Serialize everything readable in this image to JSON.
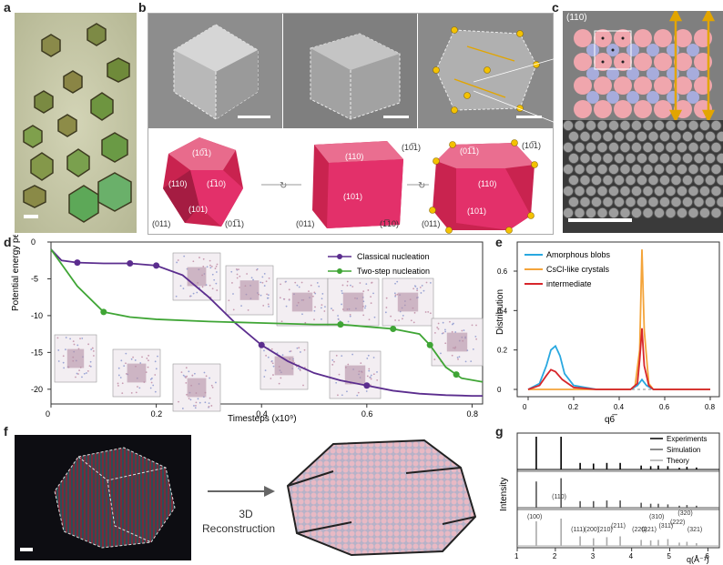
{
  "panel_letters": {
    "a": "a",
    "b": "b",
    "c": "c",
    "d": "d",
    "e": "e",
    "f": "f",
    "g": "g"
  },
  "panel_b": {
    "facets_1": [
      "(10̅1)",
      "(1̅10)",
      "(110)",
      "(101)",
      "(011)",
      "(01̅1)"
    ],
    "facets_2": [
      "(110)",
      "(10̅1)",
      "(101)",
      "(011)",
      "(1̅10)"
    ],
    "facets_3": [
      "(01̅1)",
      "(10̅1)",
      "(110)",
      "(101)",
      "(011)"
    ]
  },
  "panel_c": {
    "facet_label": "(110)"
  },
  "panel_d": {
    "ylabel": "Potential energy per particle (kʙT)",
    "xlabel": "Timesteps (x10⁹)",
    "legend": [
      "Classical nucleation",
      "Two-step nucleation"
    ],
    "colors": {
      "classical": "#5b2d8e",
      "two_step": "#3fa535"
    }
  },
  "panel_e": {
    "ylabel": "Distribution",
    "xlabel": "q6̅",
    "legend": [
      "Amorphous blobs",
      "CsCl-like crystals",
      "intermediate"
    ],
    "colors": {
      "amorphous": "#29a8e0",
      "cscl": "#f4a43a",
      "intermediate": "#d7262b"
    }
  },
  "panel_f": {
    "arrow_label_1": "3D",
    "arrow_label_2": "Reconstruction"
  },
  "panel_g": {
    "ylabel": "Intensity",
    "xlabel": "q(Å⁻¹)",
    "legend": [
      "Experiments",
      "Simulation",
      "Theory"
    ],
    "hkl": [
      "(100)",
      "(110)",
      "(111)",
      "(200)",
      "(210)",
      "(211)",
      "(220)",
      "(221)",
      "(310)",
      "(311)",
      "(222)",
      "(320)",
      "(321)"
    ]
  },
  "chart_data": [
    {
      "type": "line",
      "id": "d",
      "xlabel": "Timesteps (x10⁹)",
      "ylabel": "Potential energy per particle (kʙT)",
      "xlim": [
        0,
        0.82
      ],
      "ylim": [
        -22,
        0
      ],
      "xticks": [
        0,
        0.2,
        0.4,
        0.6,
        0.8
      ],
      "yticks": [
        -20,
        -15,
        -10,
        -5,
        0
      ],
      "series": [
        {
          "name": "Classical nucleation",
          "x": [
            0,
            0.02,
            0.05,
            0.1,
            0.15,
            0.2,
            0.25,
            0.3,
            0.35,
            0.4,
            0.45,
            0.5,
            0.55,
            0.6,
            0.65,
            0.7,
            0.75,
            0.8,
            0.82
          ],
          "y": [
            -1,
            -2.5,
            -2.8,
            -2.9,
            -2.9,
            -3.2,
            -4.5,
            -7.5,
            -11,
            -14,
            -16.2,
            -17.8,
            -18.8,
            -19.5,
            -20.2,
            -20.6,
            -20.8,
            -20.9,
            -20.9
          ],
          "markers_x": [
            0.05,
            0.15,
            0.2,
            0.4,
            0.6
          ]
        },
        {
          "name": "Two-step nucleation",
          "x": [
            0,
            0.02,
            0.05,
            0.1,
            0.15,
            0.2,
            0.3,
            0.4,
            0.5,
            0.55,
            0.6,
            0.65,
            0.7,
            0.72,
            0.75,
            0.78,
            0.82
          ],
          "y": [
            -1,
            -3,
            -6,
            -9.5,
            -10.2,
            -10.5,
            -10.8,
            -11,
            -11.2,
            -11.2,
            -11.5,
            -11.8,
            -12.5,
            -14,
            -17,
            -18.5,
            -19
          ],
          "markers_x": [
            0.1,
            0.55,
            0.65,
            0.72,
            0.77
          ]
        }
      ]
    },
    {
      "type": "line",
      "id": "e",
      "xlabel": "q6̅",
      "ylabel": "Distribution",
      "xlim": [
        0,
        0.8
      ],
      "ylim": [
        0,
        0.72
      ],
      "xticks": [
        0,
        0.2,
        0.4,
        0.6,
        0.8
      ],
      "yticks": [
        0,
        0.2,
        0.4,
        0.6
      ],
      "series": [
        {
          "name": "Amorphous blobs",
          "x": [
            0,
            0.05,
            0.08,
            0.1,
            0.12,
            0.14,
            0.16,
            0.2,
            0.3,
            0.45,
            0.48,
            0.5,
            0.52,
            0.55,
            0.8
          ],
          "y": [
            0,
            0.03,
            0.12,
            0.2,
            0.22,
            0.17,
            0.08,
            0.02,
            0,
            0,
            0.02,
            0.05,
            0.02,
            0,
            0
          ]
        },
        {
          "name": "CsCl-like crystals",
          "x": [
            0,
            0.45,
            0.47,
            0.49,
            0.5,
            0.51,
            0.53,
            0.55,
            0.8
          ],
          "y": [
            0,
            0,
            0.02,
            0.2,
            0.71,
            0.3,
            0.03,
            0,
            0
          ]
        },
        {
          "name": "intermediate",
          "x": [
            0,
            0.05,
            0.08,
            0.1,
            0.12,
            0.15,
            0.2,
            0.3,
            0.45,
            0.48,
            0.49,
            0.5,
            0.51,
            0.53,
            0.55,
            0.8
          ],
          "y": [
            0,
            0.02,
            0.07,
            0.1,
            0.09,
            0.05,
            0.01,
            0,
            0,
            0.03,
            0.15,
            0.31,
            0.12,
            0.02,
            0,
            0
          ]
        }
      ]
    },
    {
      "type": "line",
      "id": "g",
      "xlabel": "q(Å⁻¹)",
      "ylabel": "Intensity",
      "xlim": [
        1,
        6.3
      ],
      "xticks": [
        1,
        2,
        3,
        4,
        5,
        6
      ],
      "peaks_q": [
        1.5,
        2.15,
        2.65,
        3.0,
        3.35,
        3.7,
        4.25,
        4.5,
        4.7,
        4.95,
        5.25,
        5.45,
        5.7
      ],
      "series": [
        {
          "name": "Experiments",
          "peak_heights": [
            1.0,
            1.0,
            0.2,
            0.18,
            0.2,
            0.2,
            0.12,
            0.1,
            0.12,
            0.1,
            0.05,
            0.08,
            0.06
          ]
        },
        {
          "name": "Simulation",
          "peak_heights": [
            0.8,
            0.9,
            0.2,
            0.2,
            0.22,
            0.22,
            0.15,
            0.12,
            0.12,
            0.1,
            0.06,
            0.08,
            0.06
          ]
        },
        {
          "name": "Theory",
          "peak_heights": [
            0.9,
            1.0,
            0.35,
            0.28,
            0.32,
            0.35,
            0.22,
            0.2,
            0.22,
            0.25,
            0.12,
            0.15,
            0.1
          ]
        }
      ]
    }
  ]
}
